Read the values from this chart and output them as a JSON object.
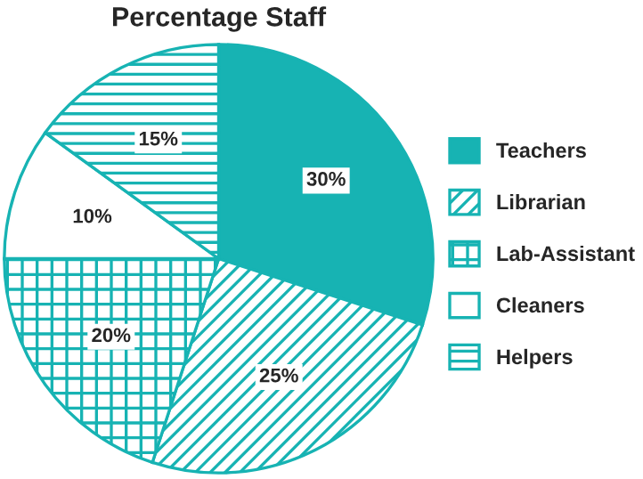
{
  "chart_data": {
    "type": "pie",
    "title": "Percentage Staff",
    "categories": [
      "Teachers",
      "Librarian",
      "Lab-Assistant",
      "Cleaners",
      "Helpers"
    ],
    "values": [
      30,
      25,
      20,
      10,
      15
    ],
    "colors": [
      "#17b3b3",
      "#17b3b3",
      "#17b3b3",
      "#ffffff",
      "#17b3b3"
    ],
    "value_labels": [
      "30%",
      "25%",
      "20%",
      "10%",
      "15%"
    ],
    "legend": "right"
  }
}
